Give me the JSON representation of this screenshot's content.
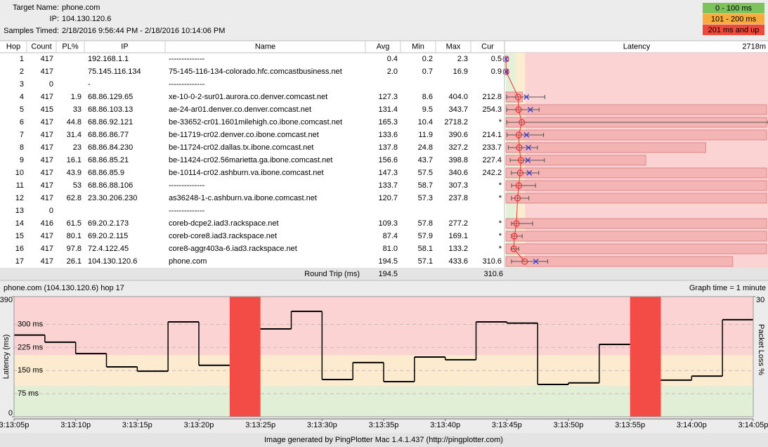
{
  "header": {
    "target_label": "Target Name:",
    "target": "phone.com",
    "ip_label": "IP:",
    "ip": "104.130.120.6",
    "samples_label": "Samples Timed:",
    "samples": "2/18/2016 9:56:44 PM - 2/18/2016 10:14:06 PM"
  },
  "legend": [
    {
      "label": "0 - 100 ms",
      "color": "#7dc35c"
    },
    {
      "label": "101 - 200 ms",
      "color": "#f6ab3c"
    },
    {
      "label": "201 ms and up",
      "color": "#f0483a"
    }
  ],
  "zone_limits": [
    100,
    200
  ],
  "table": {
    "columns": [
      "Hop",
      "Count",
      "PL%",
      "IP",
      "Name",
      "Avg",
      "Min",
      "Max",
      "Cur"
    ],
    "latency_header": "Latency",
    "latency_max": {
      "value": 2718,
      "label": "2718m"
    },
    "rows": [
      [
        "1",
        "417",
        null,
        "192.168.1.1",
        "--------------",
        "0.4",
        "0.2",
        "2.3",
        "0.5"
      ],
      [
        "2",
        "417",
        null,
        "75.145.116.134",
        "75-145-116-134-colorado.hfc.comcastbusiness.net",
        "2.0",
        "0.7",
        "16.9",
        "0.9"
      ],
      [
        "3",
        "0",
        null,
        "-",
        "--------------",
        null,
        null,
        null,
        null
      ],
      [
        "4",
        "417",
        "1.9",
        "68.86.129.65",
        "xe-10-0-2-sur01.aurora.co.denver.comcast.net",
        "127.3",
        "8.6",
        "404.0",
        "212.8"
      ],
      [
        "5",
        "415",
        "33",
        "68.86.103.13",
        "ae-24-ar01.denver.co.denver.comcast.net",
        "131.4",
        "9.5",
        "343.7",
        "254.3"
      ],
      [
        "6",
        "417",
        "44.8",
        "68.86.92.121",
        "be-33652-cr01.1601milehigh.co.ibone.comcast.net",
        "165.3",
        "10.4",
        "2718.2",
        "*"
      ],
      [
        "7",
        "417",
        "31.4",
        "68.86.86.77",
        "be-11719-cr02.denver.co.ibone.comcast.net",
        "133.6",
        "11.9",
        "390.6",
        "214.1"
      ],
      [
        "8",
        "417",
        "23",
        "68.86.84.230",
        "be-11724-cr02.dallas.tx.ibone.comcast.net",
        "137.8",
        "24.8",
        "327.2",
        "233.7"
      ],
      [
        "9",
        "417",
        "16.1",
        "68.86.85.21",
        "be-11424-cr02.56marietta.ga.ibone.comcast.net",
        "156.6",
        "43.7",
        "398.8",
        "227.4"
      ],
      [
        "10",
        "417",
        "43.9",
        "68.86.85.9",
        "be-10114-cr02.ashburn.va.ibone.comcast.net",
        "147.3",
        "57.5",
        "340.6",
        "242.2"
      ],
      [
        "11",
        "417",
        "53",
        "68.86.88.106",
        "--------------",
        "133.7",
        "58.7",
        "307.3",
        "*"
      ],
      [
        "12",
        "417",
        "62.8",
        "23.30.206.230",
        "as36248-1-c.ashburn.va.ibone.comcast.net",
        "120.7",
        "57.3",
        "237.8",
        "*"
      ],
      [
        "13",
        "0",
        null,
        null,
        "--------------",
        null,
        null,
        null,
        null
      ],
      [
        "14",
        "416",
        "61.5",
        "69.20.2.173",
        "coreb-dcpe2.iad3.rackspace.net",
        "109.3",
        "57.8",
        "277.2",
        "*"
      ],
      [
        "15",
        "417",
        "80.1",
        "69.20.2.115",
        "coreb-core8.iad3.rackspace.net",
        "87.4",
        "57.9",
        "169.1",
        "*"
      ],
      [
        "16",
        "417",
        "97.8",
        "72.4.122.45",
        "core8-aggr403a-6.iad3.rackspace.net",
        "81.0",
        "58.1",
        "133.2",
        "*"
      ],
      [
        "17",
        "417",
        "26.1",
        "104.130.120.6",
        "phone.com",
        "194.5",
        "57.1",
        "433.6",
        "310.6"
      ]
    ],
    "round_trip_label": "Round Trip (ms)",
    "round_trip_avg": "194.5",
    "round_trip_cur": "310.6"
  },
  "chart_data": {
    "type": "step",
    "title": "phone.com (104.130.120.6) hop 17",
    "subtitle": "Graph time = 1 minute",
    "ylabel": "Latency (ms)",
    "y2label": "Packet Loss %",
    "x": [
      11585,
      11587.5,
      11590,
      11592.5,
      11595,
      11597.5,
      11600,
      11602.5,
      11605,
      11607.5,
      11610,
      11612.5,
      11615,
      11617.5,
      11620,
      11622.5,
      11625,
      11627.5,
      11630,
      11632.5,
      11635,
      11637.5,
      11640,
      11642.5
    ],
    "series": [
      {
        "name": "Latency",
        "color": "#000000",
        "values": [
          265,
          242,
          205,
          162,
          148,
          308,
          167,
          null,
          285,
          342,
          121,
          176,
          114,
          194,
          185,
          308,
          304,
          105,
          110,
          235,
          null,
          119,
          132,
          315
        ]
      }
    ],
    "packet_loss": {
      "color": "#f34b45",
      "x": [
        11602.5,
        11635
      ],
      "values": [
        30,
        30
      ]
    },
    "xlim": [
      11585,
      11645
    ],
    "xticks": [
      {
        "value": 11585,
        "label": "3:13:05p"
      },
      {
        "value": 11590,
        "label": "3:13:10p"
      },
      {
        "value": 11595,
        "label": "3:13:15p"
      },
      {
        "value": 11600,
        "label": "3:13:20p"
      },
      {
        "value": 11605,
        "label": "3:13:25p"
      },
      {
        "value": 11610,
        "label": "3:13:30p"
      },
      {
        "value": 11615,
        "label": "3:13:35p"
      },
      {
        "value": 11620,
        "label": "3:13:40p"
      },
      {
        "value": 11625,
        "label": "3:13:45p"
      },
      {
        "value": 11630,
        "label": "3:13:50p"
      },
      {
        "value": 11635,
        "label": "3:13:55p"
      },
      {
        "value": 11640,
        "label": "3:14:00p"
      },
      {
        "value": 11645,
        "label": "3:14:05p"
      }
    ],
    "ylim": [
      0,
      390
    ],
    "yticks": [
      0,
      {
        "value": 75,
        "label": "75 ms"
      },
      {
        "value": 150,
        "label": "150 ms"
      },
      {
        "value": 225,
        "label": "225 ms"
      },
      {
        "value": 300,
        "label": "300 ms"
      },
      390
    ],
    "y2lim": [
      0,
      30
    ],
    "y2ticks": [
      30
    ]
  },
  "footer": "Image generated by PingPlotter Mac 1.4.1.437 (http://pingplotter.com)"
}
